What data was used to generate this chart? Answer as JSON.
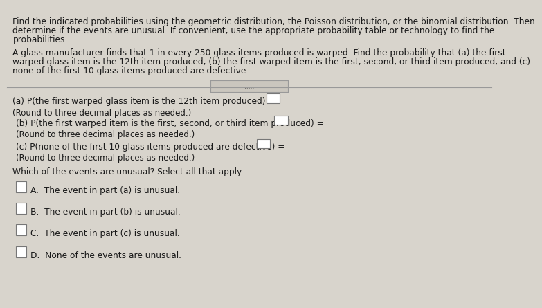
{
  "bg_top": "#cac6be",
  "bg_bottom": "#d8d4cc",
  "text_color": "#1a1a1a",
  "line_color": "#999999",
  "box_color": "#ffffff",
  "box_border": "#777777",
  "dots_bg": "#cac6be",
  "intro_line1": "Find the indicated probabilities using the geometric distribution, the Poisson distribution, or the binomial distribution. Then",
  "intro_line2": "determine if the events are unusual. If convenient, use the appropriate probability table or technology to find the",
  "intro_line3": "probabilities.",
  "prob_line1": "A glass manufacturer finds that 1 in every 250 glass items produced is warped. Find the probability that (a) the first",
  "prob_line2": "warped glass item is the 12th item produced, (b) the first warped item is the first, second, or third item produced, and (c)",
  "prob_line3": "none of the first 10 glass items produced are defective.",
  "part_a_text": "(a) P(the first warped glass item is the 12th item produced) =",
  "part_a_note": "(Round to three decimal places as needed.)",
  "part_b_text": "(b) P(the first warped item is the first, second, or third item produced) =",
  "part_b_note": "(Round to three decimal places as needed.)",
  "part_c_text": "(c) P(none of the first 10 glass items produced are defective) =",
  "part_c_note": "(Round to three decimal places as needed.)",
  "unusual_q": "Which of the events are unusual? Select all that apply.",
  "choice_A": "A.  The event in part (a) is unusual.",
  "choice_B": "B.  The event in part (b) is unusual.",
  "choice_C": "C.  The event in part (c) is unusual.",
  "choice_D": "D.  None of the events are unusual.",
  "dots": ".....",
  "fs_main": 8.8,
  "fs_note": 8.5
}
